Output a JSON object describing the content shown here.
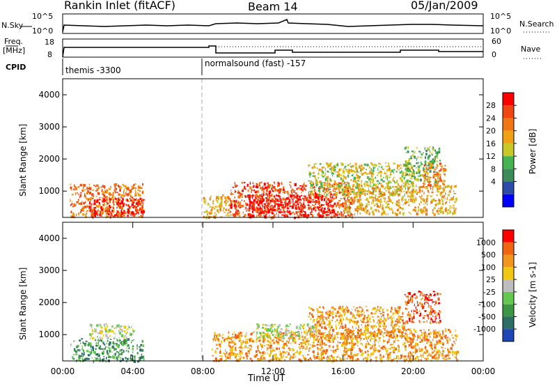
{
  "header": {
    "title": "Rankin Inlet (fitACF)",
    "beam": "Beam 14",
    "date": "05/Jan/2009"
  },
  "top_panel": {
    "left_label": "N.Sky",
    "left_ticks": [
      "10^5",
      "10^0"
    ],
    "right_ticks": [
      "10^5",
      "10^0"
    ],
    "right_label": "N.Search"
  },
  "freq_panel": {
    "left_label_1": "Freq.",
    "left_label_2": "[MHz]",
    "left_ticks": [
      "18",
      "8"
    ],
    "right_ticks": [
      "60",
      "0"
    ],
    "right_label": "Nave"
  },
  "cpid_panel": {
    "label": "CPID",
    "mode_1": "themis -3300",
    "mode_2": "normalsound (fast) -157",
    "mode_change_time_h": 8
  },
  "chart_data": [
    {
      "type": "heatmap",
      "name": "power",
      "ylabel": "Slant Range [km]",
      "xlim_h": [
        0,
        24
      ],
      "ylim_km": [
        180,
        4500
      ],
      "yticks": [
        1000,
        2000,
        3000,
        4000
      ],
      "colorbar_label": "Power [dB]",
      "colorbar_ticks": [
        "28",
        "24",
        "20",
        "16",
        "12",
        "8",
        "4"
      ],
      "colorbar_colors": [
        "#0000ff",
        "#2d4ba8",
        "#3c8c5a",
        "#46b450",
        "#c8c828",
        "#f0a014",
        "#f07814",
        "#f04614",
        "#ff0000"
      ],
      "regions": [
        {
          "t": [
            0.4,
            4.6
          ],
          "r": [
            200,
            1250
          ],
          "level": 6
        },
        {
          "t": [
            1.5,
            4.6
          ],
          "r": [
            250,
            800
          ],
          "level": 8
        },
        {
          "t": [
            8.0,
            9.5
          ],
          "r": [
            200,
            900
          ],
          "level": 5
        },
        {
          "t": [
            9.5,
            16.5
          ],
          "r": [
            200,
            1300
          ],
          "level": 7
        },
        {
          "t": [
            10.5,
            15.5
          ],
          "r": [
            250,
            900
          ],
          "level": 8
        },
        {
          "t": [
            14.0,
            20.0
          ],
          "r": [
            900,
            1900
          ],
          "level": 4
        },
        {
          "t": [
            16.0,
            22.5
          ],
          "r": [
            300,
            1200
          ],
          "level": 5
        },
        {
          "t": [
            19.5,
            21.5
          ],
          "r": [
            1300,
            2400
          ],
          "level": 3
        },
        {
          "t": [
            20.5,
            21.8
          ],
          "r": [
            1100,
            1900
          ],
          "level": 6
        }
      ]
    },
    {
      "type": "heatmap",
      "name": "velocity",
      "ylabel": "Slant Range [km]",
      "xlabel": "Time UT",
      "xlim_h": [
        0,
        24
      ],
      "ylim_km": [
        180,
        4500
      ],
      "yticks": [
        1000,
        2000,
        3000,
        4000
      ],
      "xticks": [
        "00:00",
        "04:00",
        "08:00",
        "12:00",
        "16:00",
        "20:00",
        "00:00"
      ],
      "colorbar_label": "Velocity [m s-1]",
      "colorbar_ticks": [
        "1000",
        "500",
        "100",
        "25",
        "-25",
        "-100",
        "-500",
        "-1000"
      ],
      "colorbar_colors": [
        "#1e46b4",
        "#2d6e64",
        "#3c9646",
        "#64c850",
        "#bebebe",
        "#f0c814",
        "#f0961e",
        "#f06414",
        "#ff0000"
      ],
      "regions": [
        {
          "t": [
            0.4,
            4.6
          ],
          "r": [
            200,
            900
          ],
          "level": 2
        },
        {
          "t": [
            1.5,
            4.0
          ],
          "r": [
            900,
            1350
          ],
          "level": 4
        },
        {
          "t": [
            8.5,
            16.5
          ],
          "r": [
            200,
            1100
          ],
          "level": 6
        },
        {
          "t": [
            11.0,
            14.5
          ],
          "r": [
            900,
            1350
          ],
          "level": 4
        },
        {
          "t": [
            14.0,
            19.5
          ],
          "r": [
            900,
            1900
          ],
          "level": 6
        },
        {
          "t": [
            16.0,
            22.5
          ],
          "r": [
            200,
            1200
          ],
          "level": 6
        },
        {
          "t": [
            19.5,
            21.5
          ],
          "r": [
            1400,
            2400
          ],
          "level": 7
        }
      ]
    }
  ]
}
